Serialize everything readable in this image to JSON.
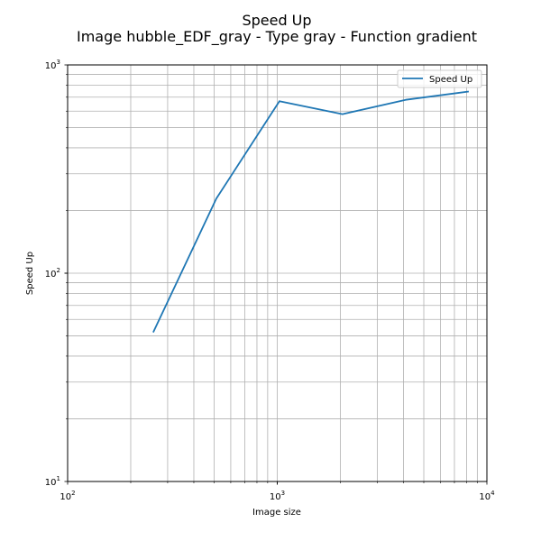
{
  "chart_data": {
    "type": "line",
    "title": "Speed Up",
    "subtitle": "Image hubble_EDF_gray - Type gray - Function gradient",
    "xlabel": "Image size",
    "ylabel": "Speed Up",
    "xscale": "log",
    "yscale": "log",
    "xlim": [
      100,
      10000
    ],
    "ylim": [
      10,
      1000
    ],
    "grid": "on (major and minor)",
    "legend_position": "upper right",
    "x_tick_labels": [
      {
        "base": "10",
        "exp": "2"
      },
      {
        "base": "10",
        "exp": "3"
      },
      {
        "base": "10",
        "exp": "4"
      }
    ],
    "y_tick_labels": [
      {
        "base": "10",
        "exp": "1"
      },
      {
        "base": "10",
        "exp": "2"
      },
      {
        "base": "10",
        "exp": "3"
      }
    ],
    "x_major_ticks": [
      100,
      1000,
      10000
    ],
    "y_major_ticks": [
      10,
      100,
      1000
    ],
    "series": [
      {
        "name": "Speed Up",
        "color": "#1f77b4",
        "x": [
          256,
          512,
          1024,
          2048,
          4096,
          8192
        ],
        "y": [
          52,
          228,
          670,
          580,
          680,
          745
        ]
      }
    ]
  }
}
